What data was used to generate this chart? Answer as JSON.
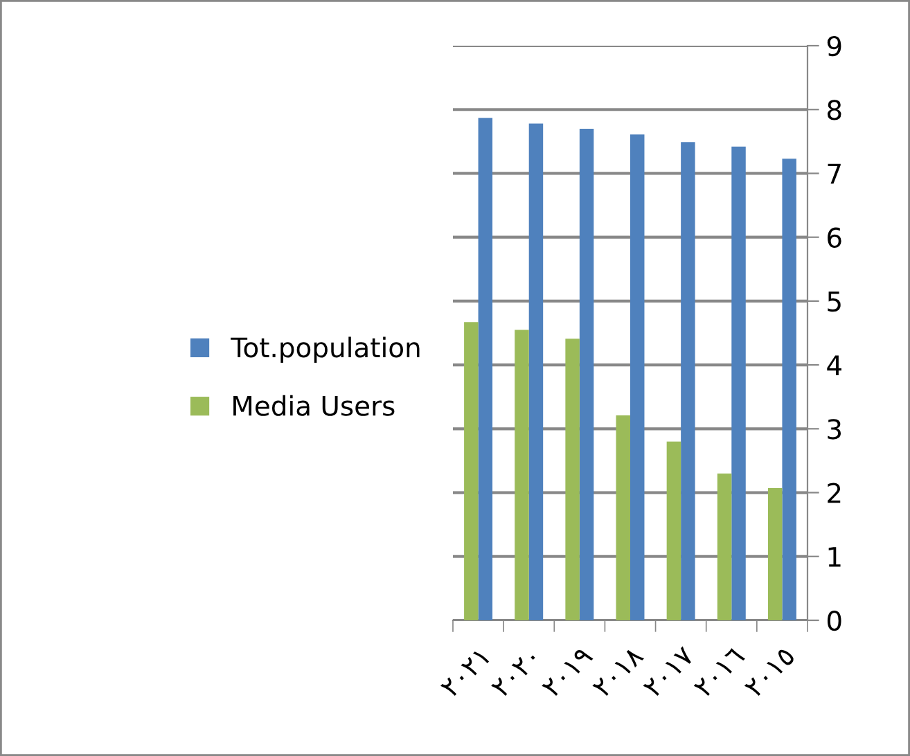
{
  "chart_data": {
    "type": "bar",
    "categories": [
      "٢٠٢١",
      "٢٠٢٠",
      "٢٠١٩",
      "٢٠١٨",
      "٢٠١٧",
      "٢٠١٦",
      "٢٠١٥"
    ],
    "series": [
      {
        "name": "Tot.population",
        "color": "#4f81bd",
        "values": [
          7.87,
          7.78,
          7.7,
          7.61,
          7.49,
          7.42,
          7.23
        ]
      },
      {
        "name": "Media Users",
        "color": "#9bbb59",
        "values": [
          4.67,
          4.55,
          4.41,
          3.21,
          2.8,
          2.3,
          2.07
        ]
      }
    ],
    "ylim": [
      0,
      9
    ],
    "yticks": [
      0,
      1,
      2,
      3,
      4,
      5,
      6,
      7,
      8,
      9
    ],
    "grid": "y",
    "legend": "left"
  }
}
